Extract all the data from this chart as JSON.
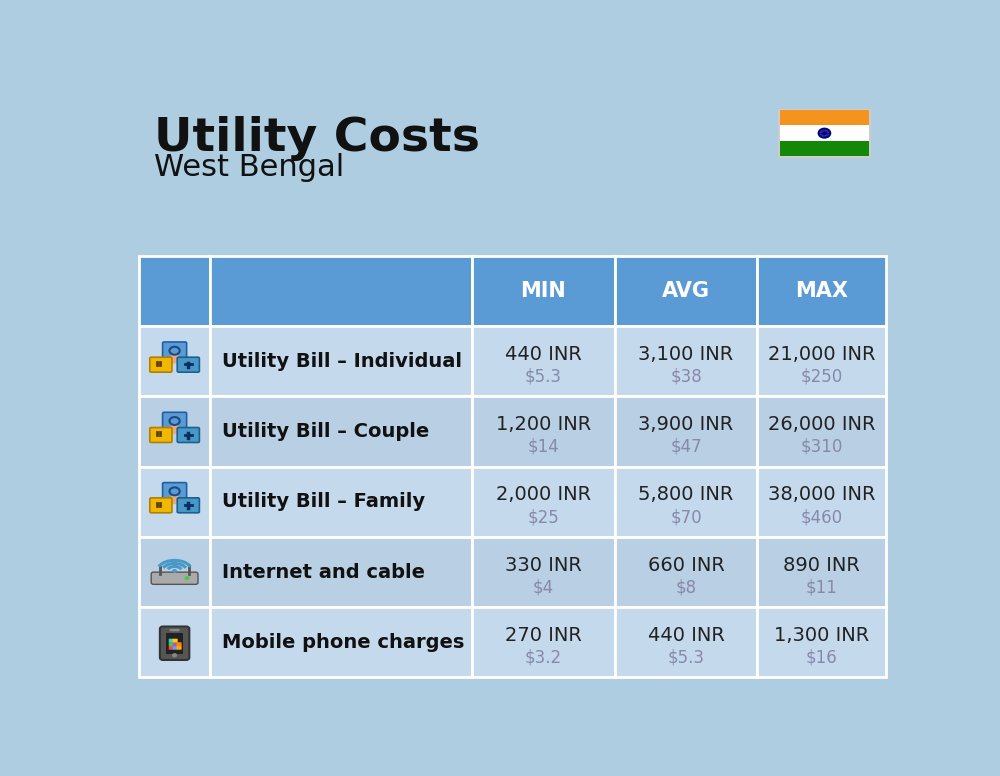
{
  "title": "Utility Costs",
  "subtitle": "West Bengal",
  "background_color": "#aecde0",
  "header_bg_color": "#5b9bd5",
  "row_bg_color_1": "#c5d9ed",
  "row_bg_color_2": "#b8cfe4",
  "header_text_color": "#ffffff",
  "label_text_color": "#111111",
  "value_text_color": "#222222",
  "usd_text_color": "#8888aa",
  "grid_line_color": "#ffffff",
  "columns": [
    "MIN",
    "AVG",
    "MAX"
  ],
  "rows": [
    {
      "label": "Utility Bill – Individual",
      "icon": "utility",
      "min_inr": "440 INR",
      "min_usd": "$5.3",
      "avg_inr": "3,100 INR",
      "avg_usd": "$38",
      "max_inr": "21,000 INR",
      "max_usd": "$250"
    },
    {
      "label": "Utility Bill – Couple",
      "icon": "utility",
      "min_inr": "1,200 INR",
      "min_usd": "$14",
      "avg_inr": "3,900 INR",
      "avg_usd": "$47",
      "max_inr": "26,000 INR",
      "max_usd": "$310"
    },
    {
      "label": "Utility Bill – Family",
      "icon": "utility",
      "min_inr": "2,000 INR",
      "min_usd": "$25",
      "avg_inr": "5,800 INR",
      "avg_usd": "$70",
      "max_inr": "38,000 INR",
      "max_usd": "$460"
    },
    {
      "label": "Internet and cable",
      "icon": "internet",
      "min_inr": "330 INR",
      "min_usd": "$4",
      "avg_inr": "660 INR",
      "avg_usd": "$8",
      "max_inr": "890 INR",
      "max_usd": "$11"
    },
    {
      "label": "Mobile phone charges",
      "icon": "mobile",
      "min_inr": "270 INR",
      "min_usd": "$3.2",
      "avg_inr": "440 INR",
      "avg_usd": "$5.3",
      "max_inr": "1,300 INR",
      "max_usd": "$16"
    }
  ],
  "title_fontsize": 34,
  "subtitle_fontsize": 22,
  "header_fontsize": 15,
  "label_fontsize": 14,
  "value_fontsize": 14,
  "usd_fontsize": 12,
  "flag_colors": [
    "#f4931e",
    "#ffffff",
    "#138808"
  ]
}
